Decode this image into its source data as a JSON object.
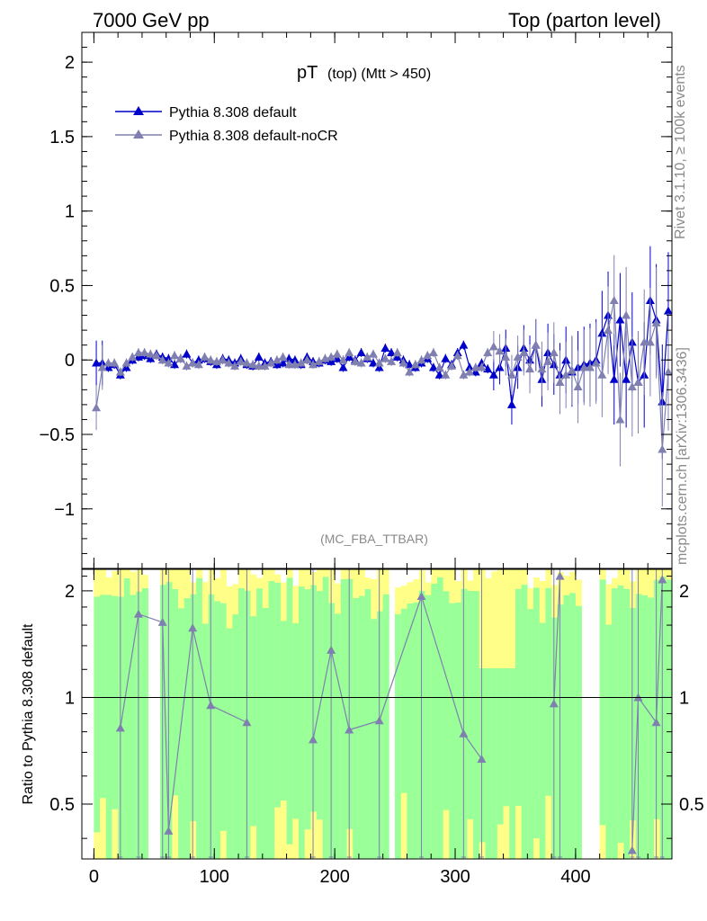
{
  "header": {
    "left": "7000 GeV pp",
    "right": "Top (parton level)"
  },
  "side_labels": {
    "top": "Rivet 3.1.10, ≥ 100k events",
    "bottom": "mcplots.cern.ch [arXiv:1306.3436]"
  },
  "colors": {
    "default": "#0000cc",
    "noCR": "#8080b0",
    "band_green": "#99ff99",
    "band_yellow": "#ffff88"
  },
  "chart_data": [
    {
      "type": "line",
      "title_main": "pT",
      "title_sub": "(top) (Mtt > 450)",
      "watermark": "(MC_FBA_TTBAR)",
      "ylim": [
        -1.4,
        2.2
      ],
      "xlim": [
        -10,
        480
      ],
      "yticks": [
        {
          "v": 2,
          "label": "2"
        },
        {
          "v": 1.5,
          "label": "1.5"
        },
        {
          "v": 1,
          "label": "1"
        },
        {
          "v": 0.5,
          "label": "0.5"
        },
        {
          "v": 0,
          "label": "0"
        },
        {
          "v": -0.5,
          "label": "−0.5"
        },
        {
          "v": -1,
          "label": "−1"
        }
      ],
      "legend": "top-left",
      "series": [
        {
          "name": "Pythia 8.308 default",
          "x": [
            2,
            7,
            12,
            17,
            22,
            27,
            32,
            37,
            42,
            47,
            52,
            57,
            62,
            67,
            72,
            77,
            82,
            87,
            92,
            97,
            102,
            107,
            112,
            117,
            122,
            127,
            132,
            137,
            142,
            147,
            152,
            157,
            162,
            167,
            172,
            177,
            182,
            187,
            192,
            197,
            202,
            207,
            212,
            217,
            222,
            227,
            232,
            237,
            242,
            247,
            252,
            257,
            262,
            267,
            272,
            277,
            282,
            287,
            292,
            297,
            302,
            307,
            312,
            317,
            322,
            327,
            332,
            337,
            342,
            347,
            352,
            357,
            362,
            367,
            372,
            377,
            382,
            387,
            392,
            397,
            402,
            407,
            412,
            417,
            422,
            427,
            432,
            437,
            442,
            447,
            452,
            457,
            462,
            467,
            472,
            477
          ],
          "y": [
            -0.02,
            -0.02,
            -0.05,
            -0.03,
            -0.1,
            -0.05,
            0,
            0.02,
            0.03,
            0.01,
            0.04,
            0.02,
            0.01,
            -0.03,
            0.01,
            0.04,
            -0.02,
            0,
            0.01,
            -0.01,
            -0.03,
            0.01,
            0,
            -0.02,
            0.01,
            -0.03,
            -0.04,
            0.02,
            -0.02,
            -0.01,
            -0.03,
            -0.02,
            0.01,
            0,
            -0.03,
            0.02,
            -0.01,
            -0.02,
            0,
            -0.01,
            0.01,
            -0.05,
            0.02,
            0,
            0.05,
            0.01,
            -0.02,
            -0.05,
            0.08,
            0.05,
            0.02,
            0,
            -0.03,
            -0.05,
            -0.02,
            0.01,
            -0.05,
            -0.1,
            0.01,
            -0.03,
            0.05,
            0.1,
            -0.05,
            -0.08,
            -0.02,
            -0.06,
            -0.1,
            -0.05,
            0.08,
            -0.3,
            -0.05,
            0.08,
            0,
            0.1,
            -0.13,
            0.05,
            -0.03,
            -0.1,
            0,
            -0.08,
            -0.05,
            -0.03,
            -0.02,
            0,
            0.18,
            0.3,
            -0.13,
            0.27,
            -0.13,
            0.12,
            -0.15,
            -0.1,
            0.4,
            0.27,
            -0.28,
            0.33
          ]
        },
        {
          "name": "Pythia 8.308 default-noCR",
          "x": [
            2,
            7,
            12,
            17,
            22,
            27,
            32,
            37,
            42,
            47,
            52,
            57,
            62,
            67,
            72,
            77,
            82,
            87,
            92,
            97,
            102,
            107,
            112,
            117,
            122,
            127,
            132,
            137,
            142,
            147,
            152,
            157,
            162,
            167,
            172,
            177,
            182,
            187,
            192,
            197,
            202,
            207,
            212,
            217,
            222,
            227,
            232,
            237,
            242,
            247,
            252,
            257,
            262,
            267,
            272,
            277,
            282,
            287,
            292,
            297,
            302,
            307,
            312,
            317,
            322,
            327,
            332,
            337,
            342,
            347,
            352,
            357,
            362,
            367,
            372,
            377,
            382,
            387,
            392,
            397,
            402,
            407,
            412,
            417,
            422,
            427,
            432,
            437,
            442,
            447,
            452,
            457,
            462,
            467,
            472,
            477
          ],
          "y": [
            -0.32,
            -0.05,
            -0.02,
            -0.02,
            -0.08,
            -0.02,
            0.02,
            0.05,
            0.05,
            0.04,
            0.03,
            0,
            -0.02,
            0.03,
            0.01,
            -0.04,
            -0.02,
            -0.03,
            0.02,
            0,
            -0.01,
            0,
            -0.02,
            -0.04,
            -0.01,
            -0.02,
            -0.03,
            -0.04,
            -0.04,
            -0.02,
            0,
            0.02,
            -0.03,
            -0.03,
            -0.02,
            0,
            -0.03,
            -0.01,
            0.01,
            0.02,
            0.04,
            0,
            0.05,
            -0.01,
            -0.02,
            0.02,
            0.04,
            -0.02,
            0.01,
            -0.01,
            0.05,
            -0.02,
            -0.08,
            -0.03,
            0,
            0.03,
            0.05,
            -0.05,
            -0.1,
            -0.04,
            0.03,
            -0.1,
            -0.08,
            -0.05,
            -0.05,
            0.05,
            0.09,
            0.06,
            0.02,
            -0.1,
            0.02,
            0.05,
            -0.06,
            0.1,
            -0.06,
            -0.01,
            0.05,
            -0.15,
            -0.1,
            -0.07,
            -0.18,
            -0.05,
            -0.05,
            -0.02,
            -0.1,
            0.2,
            0.4,
            -0.4,
            0.3,
            -0.18,
            -0.15,
            0.12,
            0.12,
            0.25,
            -0.6,
            -0.08
          ]
        }
      ]
    },
    {
      "type": "line",
      "ylabel": "Ratio to Pythia 8.308 default",
      "ylim": [
        0.35,
        2.3
      ],
      "xlim": [
        -10,
        480
      ],
      "xticks": [
        {
          "v": 0,
          "label": "0"
        },
        {
          "v": 100,
          "label": "100"
        },
        {
          "v": 200,
          "label": "200"
        },
        {
          "v": 300,
          "label": "300"
        },
        {
          "v": 400,
          "label": "400"
        }
      ],
      "yticks": [
        {
          "v": 2,
          "label": "2"
        },
        {
          "v": 1,
          "label": "1"
        },
        {
          "v": 0.5,
          "label": "0.5"
        }
      ],
      "series": [
        {
          "name": "",
          "x": [
            22,
            37,
            57,
            62,
            82,
            97,
            127,
            182,
            197,
            212,
            237,
            272,
            307,
            322,
            382,
            387,
            447,
            452,
            467,
            472
          ],
          "y": [
            0.82,
            1.72,
            1.63,
            0.42,
            1.57,
            0.95,
            0.85,
            0.76,
            1.36,
            0.81,
            0.86,
            1.93,
            0.79,
            0.67,
            0.96,
            2.2,
            0.37,
            1.0,
            0.85,
            2.15
          ]
        }
      ]
    }
  ]
}
